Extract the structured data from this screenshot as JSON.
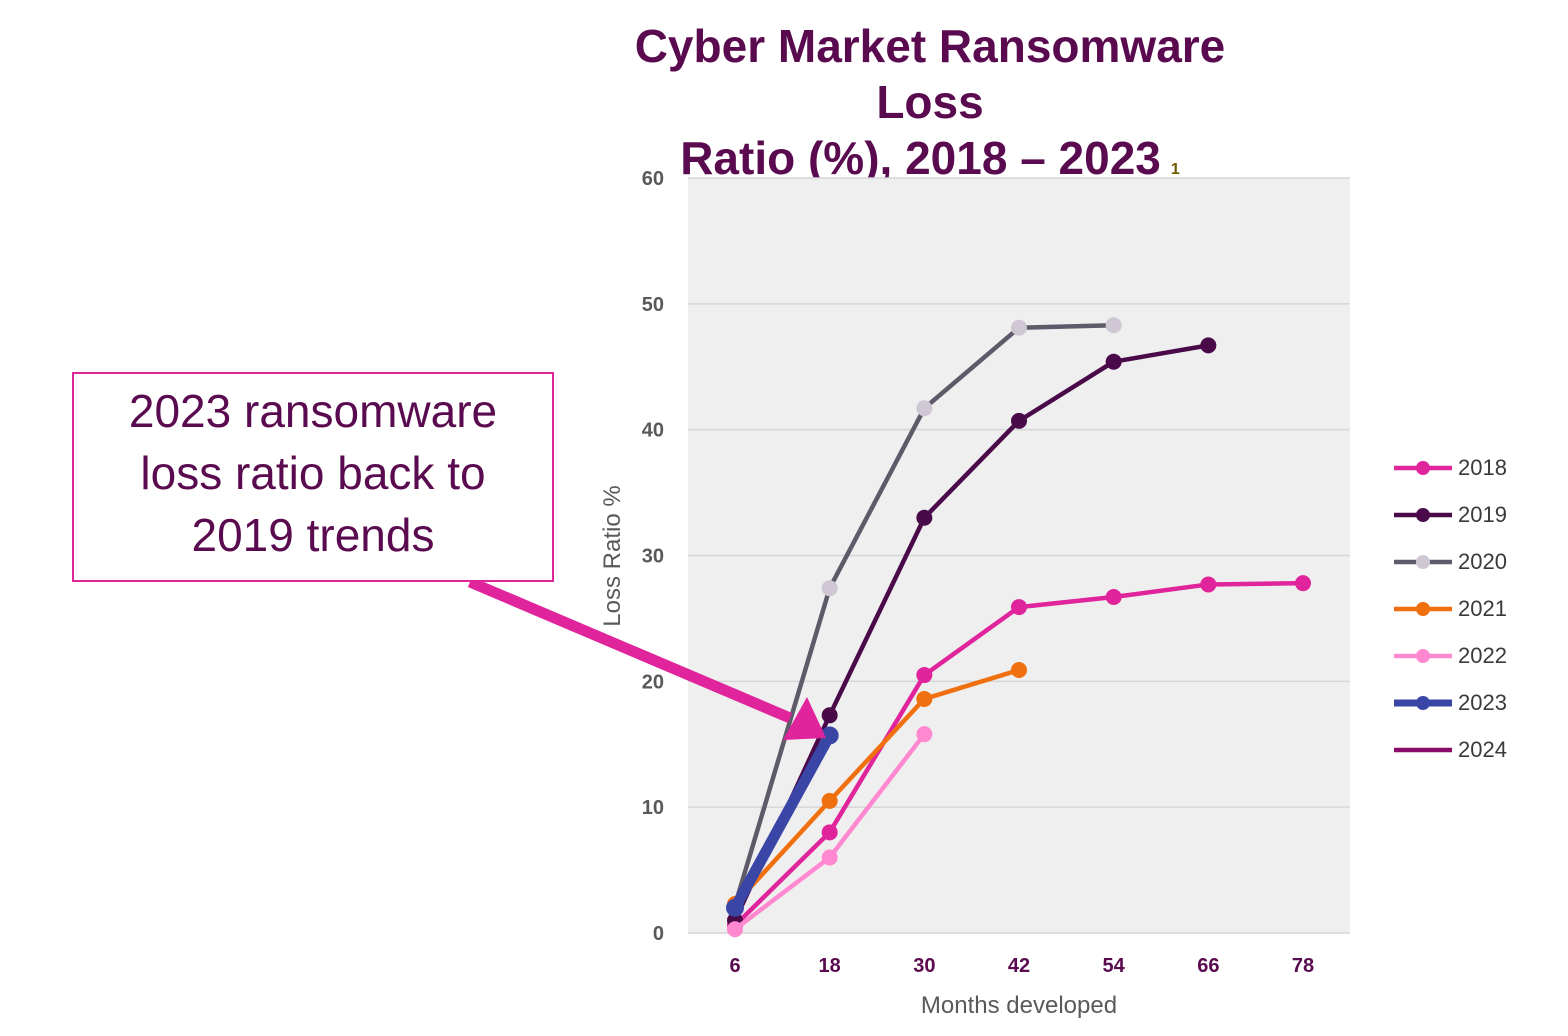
{
  "chart_data": {
    "type": "line",
    "title_line1": "Cyber Market Ransomware Loss",
    "title_line2": "Ratio (%), 2018 – 2023",
    "title_footnote": "1",
    "xlabel": "Months developed",
    "ylabel": "Loss Ratio %",
    "x": [
      6,
      18,
      30,
      42,
      54,
      66,
      78
    ],
    "x_tick_labels": [
      "6",
      "18",
      "30",
      "42",
      "54",
      "66",
      "78"
    ],
    "y_tick_labels": [
      "0",
      "10",
      "20",
      "30",
      "40",
      "50",
      "60"
    ],
    "ylim": [
      0,
      60
    ],
    "grid": "horizontal",
    "plot_background": "#efefef",
    "legend_position": "right",
    "series": [
      {
        "name": "2018",
        "color": "#e0249b",
        "values": [
          0.6,
          8.0,
          20.5,
          25.9,
          26.7,
          27.7,
          27.8
        ]
      },
      {
        "name": "2019",
        "color": "#4a0a4a",
        "values": [
          1.0,
          17.3,
          33.0,
          40.7,
          45.4,
          46.7,
          null
        ]
      },
      {
        "name": "2020",
        "color": "#5f5a6a",
        "values": [
          2.2,
          27.4,
          41.7,
          48.1,
          48.3,
          null,
          null
        ]
      },
      {
        "name": "2021",
        "color": "#f07010",
        "values": [
          2.3,
          10.5,
          18.6,
          20.9,
          null,
          null,
          null
        ]
      },
      {
        "name": "2022",
        "color": "#ff88d0",
        "values": [
          0.3,
          6.0,
          15.8,
          null,
          null,
          null,
          null
        ]
      },
      {
        "name": "2023",
        "color": "#3a46a6",
        "values": [
          2.0,
          15.7,
          null,
          null,
          null,
          null,
          null
        ]
      },
      {
        "name": "2024",
        "color": "#8a0a6a",
        "values": [
          null,
          null,
          null,
          null,
          null,
          null,
          null
        ]
      }
    ],
    "annotation": {
      "lines": [
        "2023 ransomware",
        "loss ratio back to",
        "2019 trends"
      ]
    },
    "marker_colors": {
      "2020": "#cfc8d4"
    }
  }
}
